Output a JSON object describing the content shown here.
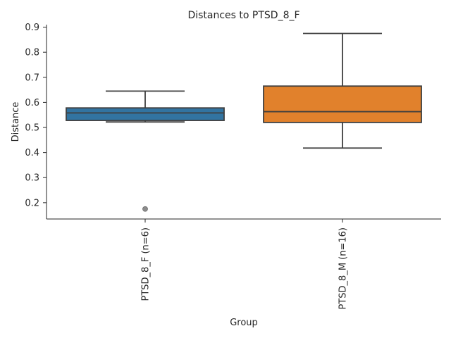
{
  "chart_data": {
    "type": "box",
    "title": "Distances to PTSD_8_F",
    "xlabel": "Group",
    "ylabel": "Distance",
    "ylim": [
      0.135,
      0.91
    ],
    "yticks": [
      0.2,
      0.3,
      0.4,
      0.5,
      0.6,
      0.7,
      0.8,
      0.9
    ],
    "ytick_labels": [
      "0.2",
      "0.3",
      "0.4",
      "0.5",
      "0.6",
      "0.7",
      "0.8",
      "0.9"
    ],
    "grid": false,
    "categories": [
      "PTSD_8_F (n=6)",
      "PTSD_8_M (n=16)"
    ],
    "boxes": [
      {
        "name": "PTSD_8_F (n=6)",
        "color": "#3274a1",
        "whisker_low": 0.522,
        "q1": 0.528,
        "median": 0.558,
        "q3": 0.578,
        "whisker_high": 0.645,
        "outliers": [
          0.175
        ]
      },
      {
        "name": "PTSD_8_M (n=16)",
        "color": "#e1812c",
        "whisker_low": 0.418,
        "q1": 0.52,
        "median": 0.563,
        "q3": 0.665,
        "whisker_high": 0.875,
        "outliers": []
      }
    ]
  }
}
